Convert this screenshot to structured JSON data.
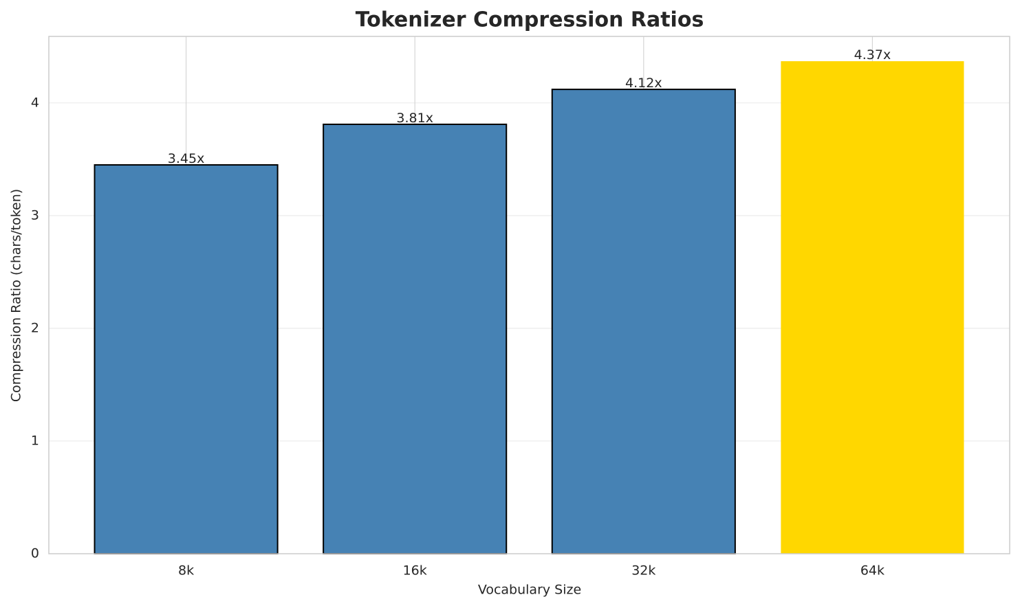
{
  "chart_data": {
    "type": "bar",
    "title": "Tokenizer Compression Ratios",
    "xlabel": "Vocabulary Size",
    "ylabel": "Compression Ratio (chars/token)",
    "categories": [
      "8k",
      "16k",
      "32k",
      "64k"
    ],
    "values": [
      3.45,
      3.81,
      4.12,
      4.37
    ],
    "value_labels": [
      "3.45x",
      "3.81x",
      "4.12x",
      "4.37x"
    ],
    "colors": [
      "#4682b4",
      "#4682b4",
      "#4682b4",
      "#ffd700"
    ],
    "edge_colors": [
      "#000000",
      "#000000",
      "#000000",
      "none"
    ],
    "ylim": [
      0,
      4.59
    ],
    "yticks": [
      0,
      1,
      2,
      3,
      4
    ],
    "grid": true
  }
}
